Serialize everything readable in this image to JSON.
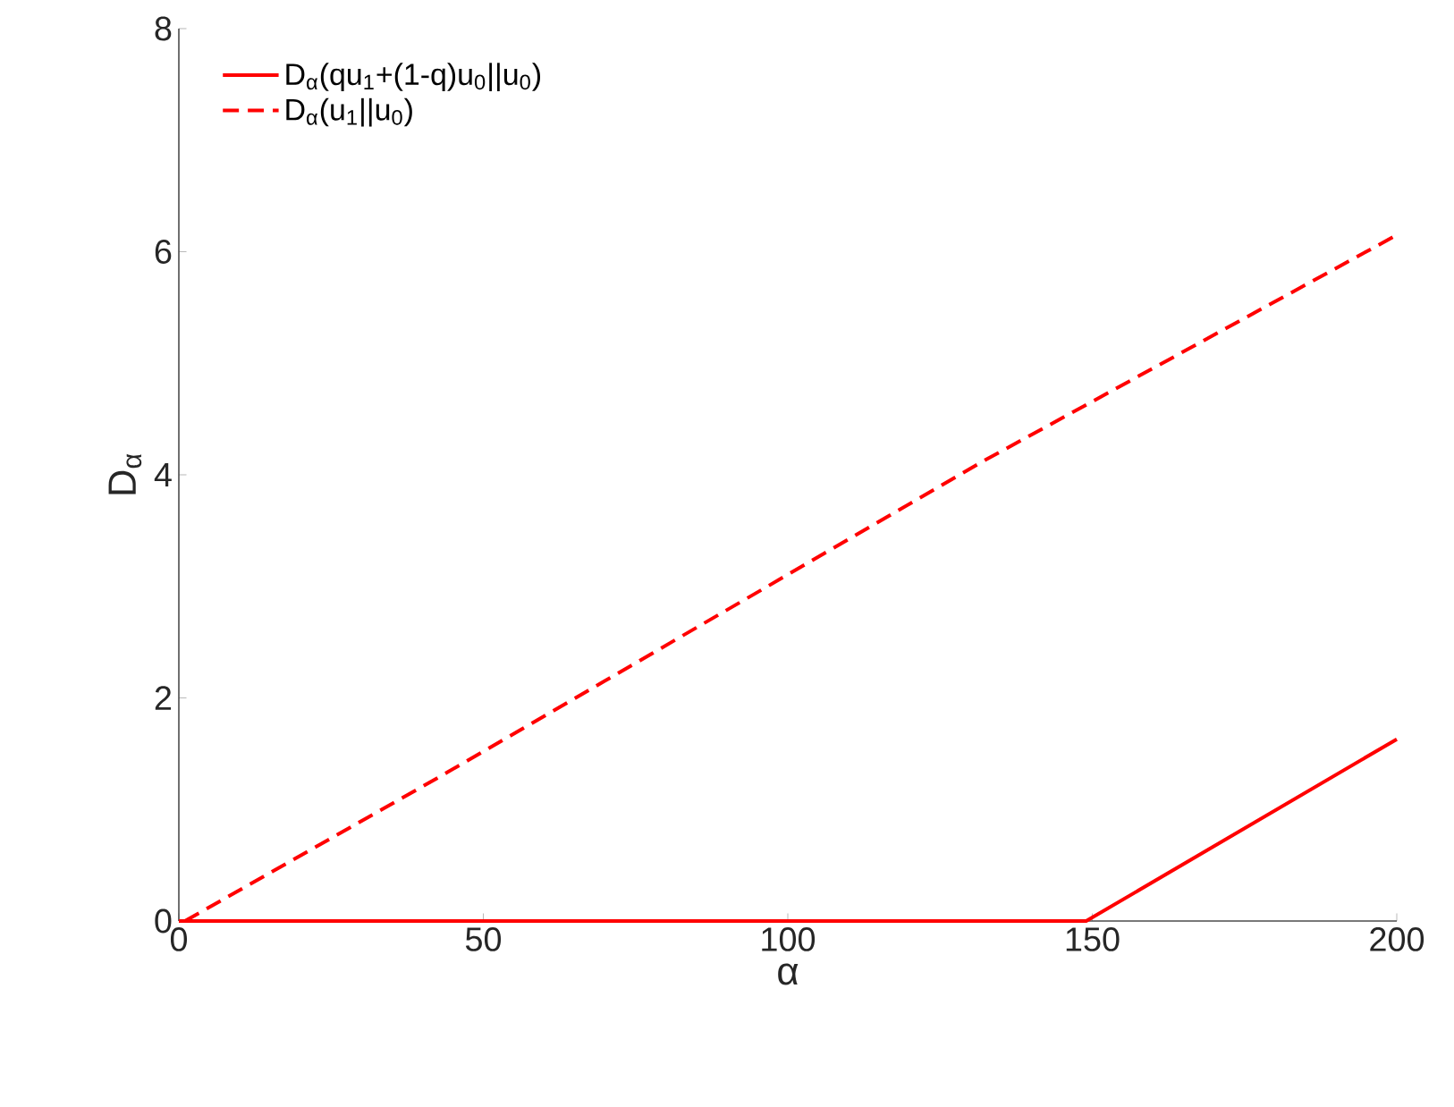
{
  "chart_data": {
    "type": "line",
    "xlabel": "α",
    "ylabel": "D$_{α}$",
    "xlim": [
      0,
      200
    ],
    "ylim": [
      0,
      8
    ],
    "xticks": [
      0,
      50,
      100,
      150,
      200
    ],
    "yticks": [
      0,
      2,
      4,
      6,
      8
    ],
    "legend": "top left",
    "grid": false,
    "series": [
      {
        "name": "D$_{α}$(qu$_{1}$+(1-q)u$_{0}$||u$_{0}$)",
        "color": "#ff0000",
        "line_style": "solid",
        "x": [
          0,
          149,
          200
        ],
        "values": [
          0,
          0,
          1.63
        ]
      },
      {
        "name": "D$_{α}$(u$_{1}$||u$_{0}$)",
        "color": "#ff0000",
        "line_style": "dashed",
        "x": [
          1,
          44,
          132,
          200
        ],
        "values": [
          0,
          1.33,
          4.12,
          6.15
        ]
      }
    ]
  }
}
